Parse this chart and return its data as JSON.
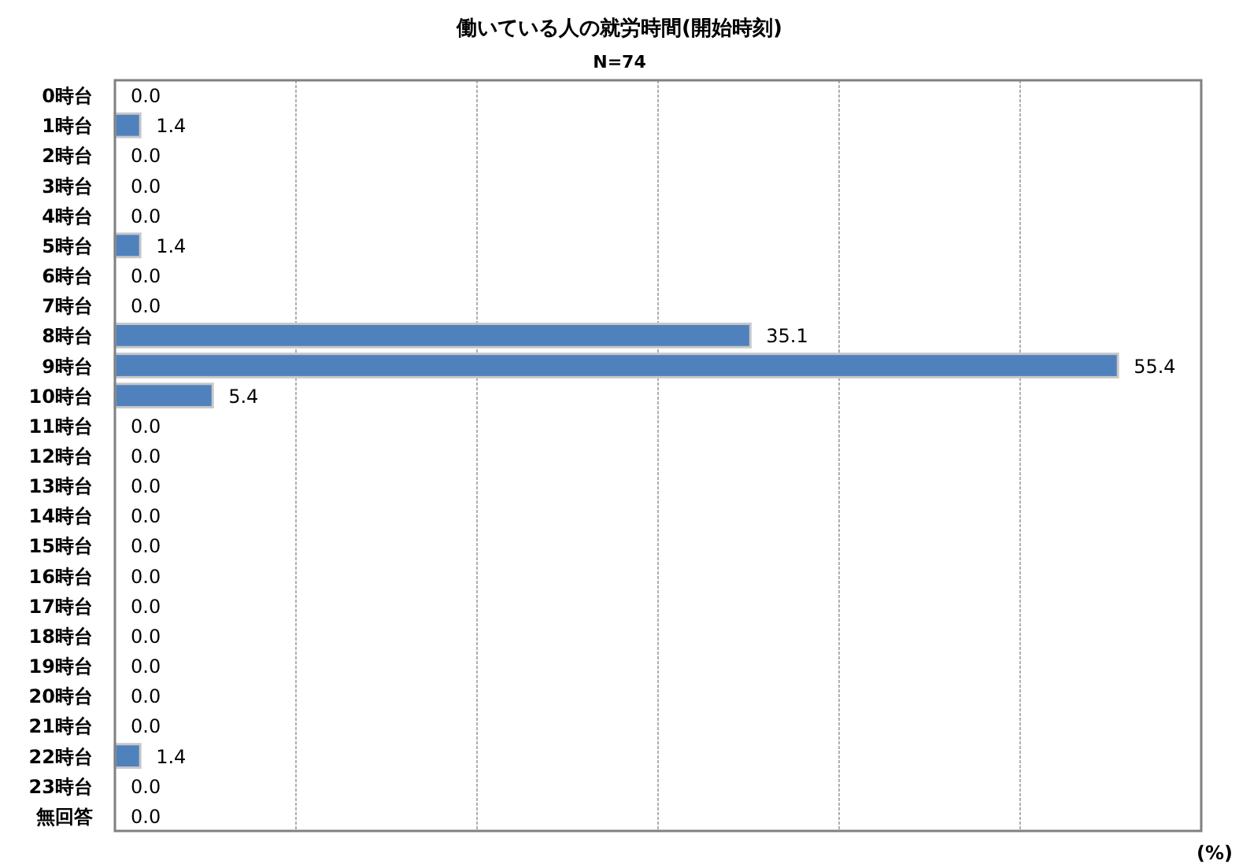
{
  "chart_data": {
    "type": "bar",
    "orientation": "horizontal",
    "title": "働いている人の就労時間(開始時刻)",
    "subtitle": "N=74",
    "categories": [
      "0時台",
      "1時台",
      "2時台",
      "3時台",
      "4時台",
      "5時台",
      "6時台",
      "7時台",
      "8時台",
      "9時台",
      "10時台",
      "11時台",
      "12時台",
      "13時台",
      "14時台",
      "15時台",
      "16時台",
      "17時台",
      "18時台",
      "19時台",
      "20時台",
      "21時台",
      "22時台",
      "23時台",
      "無回答"
    ],
    "values": [
      0.0,
      1.4,
      0.0,
      0.0,
      0.0,
      1.4,
      0.0,
      0.0,
      35.1,
      55.4,
      5.4,
      0.0,
      0.0,
      0.0,
      0.0,
      0.0,
      0.0,
      0.0,
      0.0,
      0.0,
      0.0,
      0.0,
      1.4,
      0.0,
      0.0
    ],
    "value_labels": [
      "0.0",
      "1.4",
      "0.0",
      "0.0",
      "0.0",
      "1.4",
      "0.0",
      "0.0",
      "35.1",
      "55.4",
      "5.4",
      "0.0",
      "0.0",
      "0.0",
      "0.0",
      "0.0",
      "0.0",
      "0.0",
      "0.0",
      "0.0",
      "0.0",
      "0.0",
      "1.4",
      "0.0",
      "0.0"
    ],
    "color": "#4f81bd",
    "xlim": [
      0,
      60
    ],
    "xticks": [
      {
        "value": 0,
        "label": null
      },
      {
        "value": 10,
        "label": null
      },
      {
        "value": 20,
        "label": null
      },
      {
        "value": 30,
        "label": null
      },
      {
        "value": 40,
        "label": null
      },
      {
        "value": 50,
        "label": null
      },
      {
        "value": 60,
        "label": null
      }
    ],
    "tick_labels": "y",
    "grid": "x",
    "annotations": [
      "(%)"
    ]
  }
}
